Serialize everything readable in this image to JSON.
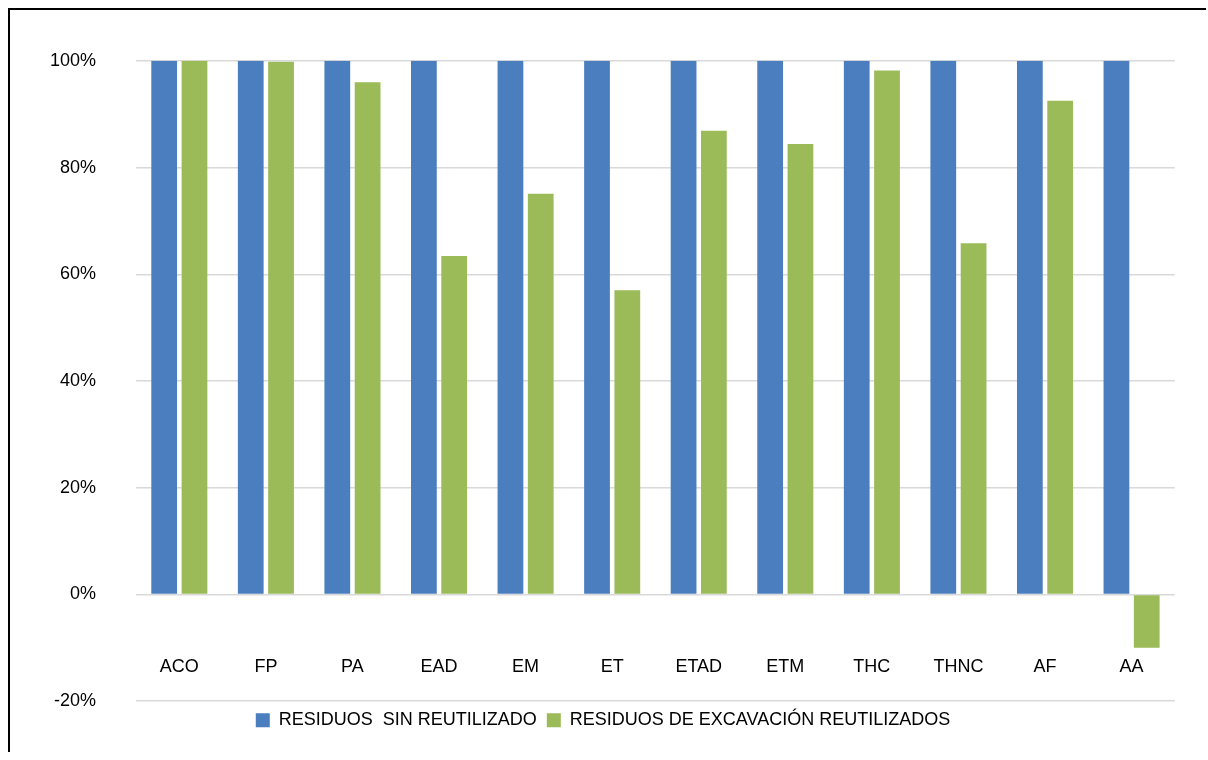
{
  "chart_data": {
    "type": "bar",
    "categories": [
      "ACO",
      "FP",
      "PA",
      "EAD",
      "EM",
      "ET",
      "ETAD",
      "ETM",
      "THC",
      "THNC",
      "AF",
      "AA"
    ],
    "series": [
      {
        "name": "RESIDUOS  SIN REUTILIZADO",
        "color": "#4a7ebf",
        "values": [
          100,
          100,
          100,
          100,
          100,
          100,
          100,
          100,
          100,
          100,
          100,
          100
        ]
      },
      {
        "name": "RESIDUOS DE EXCAVACIÓN REUTILIZADOS",
        "color": "#9bbb59",
        "values": [
          100,
          99.8,
          96,
          63.4,
          75.1,
          57,
          86.9,
          84.4,
          98.2,
          65.8,
          92.5,
          -10
        ]
      }
    ],
    "ylim": [
      -20,
      100
    ],
    "yticks": [
      {
        "value": -20,
        "label": "-20%"
      },
      {
        "value": 0,
        "label": "0%"
      },
      {
        "value": 20,
        "label": "20%"
      },
      {
        "value": 40,
        "label": "40%"
      },
      {
        "value": 60,
        "label": "60%"
      },
      {
        "value": 80,
        "label": "80%"
      },
      {
        "value": 100,
        "label": "100%"
      }
    ],
    "grid": "y",
    "legend": "bottom"
  }
}
